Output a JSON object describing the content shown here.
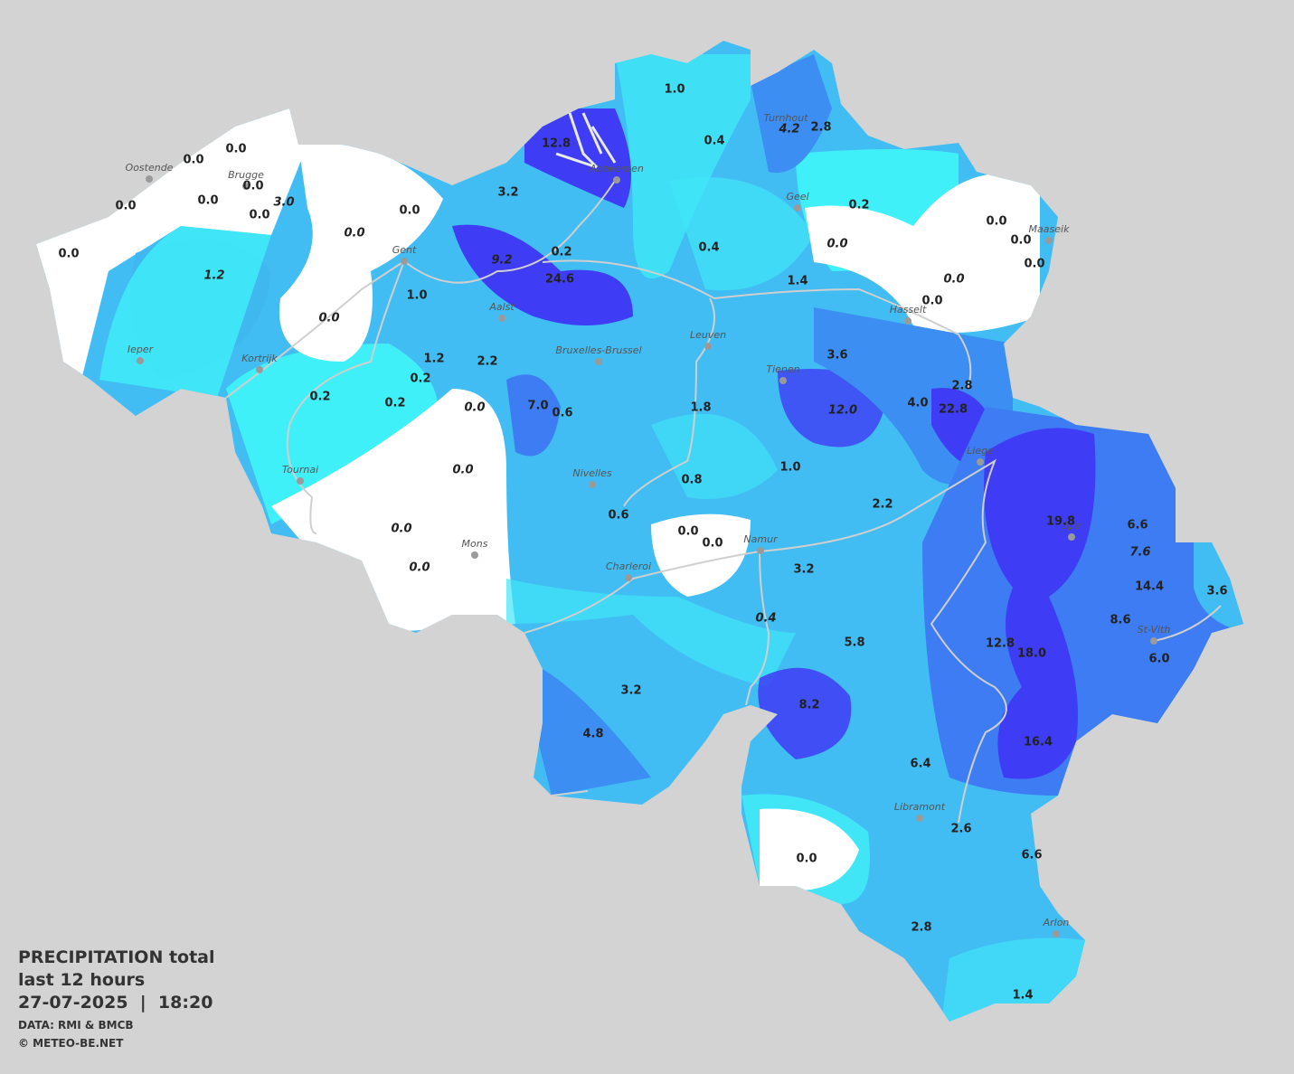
{
  "title": {
    "line1": "PRECIPITATION total",
    "line2": "last 12 hours",
    "line3": "27-07-2025  |  18:20",
    "source": "DATA: RMI & BMCB",
    "copyright": "© METEO-BE.NET"
  },
  "stations": [
    "0.0",
    "0.0",
    "0.0",
    "0.0",
    "0.0",
    "0.0",
    "3.0",
    "0.0",
    "0.0",
    "0.0",
    "1.2",
    "0.0",
    "12.8",
    "3.2",
    "0.2",
    "9.2",
    "24.6",
    "1.0",
    "1.0",
    "0.4",
    "4.2",
    "2.8",
    "0.2",
    "0.4",
    "0.0",
    "0.0",
    "0.0",
    "0.0",
    "0.0",
    "0.0",
    "1.4",
    "1.2",
    "2.2",
    "0.2",
    "0.2",
    "0.2",
    "0.0",
    "7.0",
    "0.6",
    "1.8",
    "3.6",
    "12.0",
    "4.0",
    "2.8",
    "22.8",
    "0.0",
    "1.0",
    "0.8",
    "0.6",
    "2.2",
    "19.8",
    "6.6",
    "7.6",
    "0.0",
    "0.0",
    "0.0",
    "0.0",
    "3.2",
    "14.4",
    "3.6",
    "0.4",
    "8.6",
    "5.8",
    "12.8",
    "18.0",
    "6.0",
    "3.2",
    "8.2",
    "4.8",
    "16.4",
    "6.4",
    "2.6",
    "0.0",
    "6.6",
    "2.8",
    "1.4"
  ],
  "cities": [
    "Oostende",
    "Brugge",
    "Gent",
    "Antwerpen",
    "Turnhout",
    "Geel",
    "Maaseik",
    "Hasselt",
    "Aalst",
    "Leuven",
    "Ieper",
    "Kortrijk",
    "Bruxelles-Brussel",
    "Tienen",
    "Liege",
    "Tournai",
    "Nivelles",
    "Spa",
    "Mons",
    "Namur",
    "Charleroi",
    "St-Vith",
    "Libramont",
    "Arlon"
  ]
}
